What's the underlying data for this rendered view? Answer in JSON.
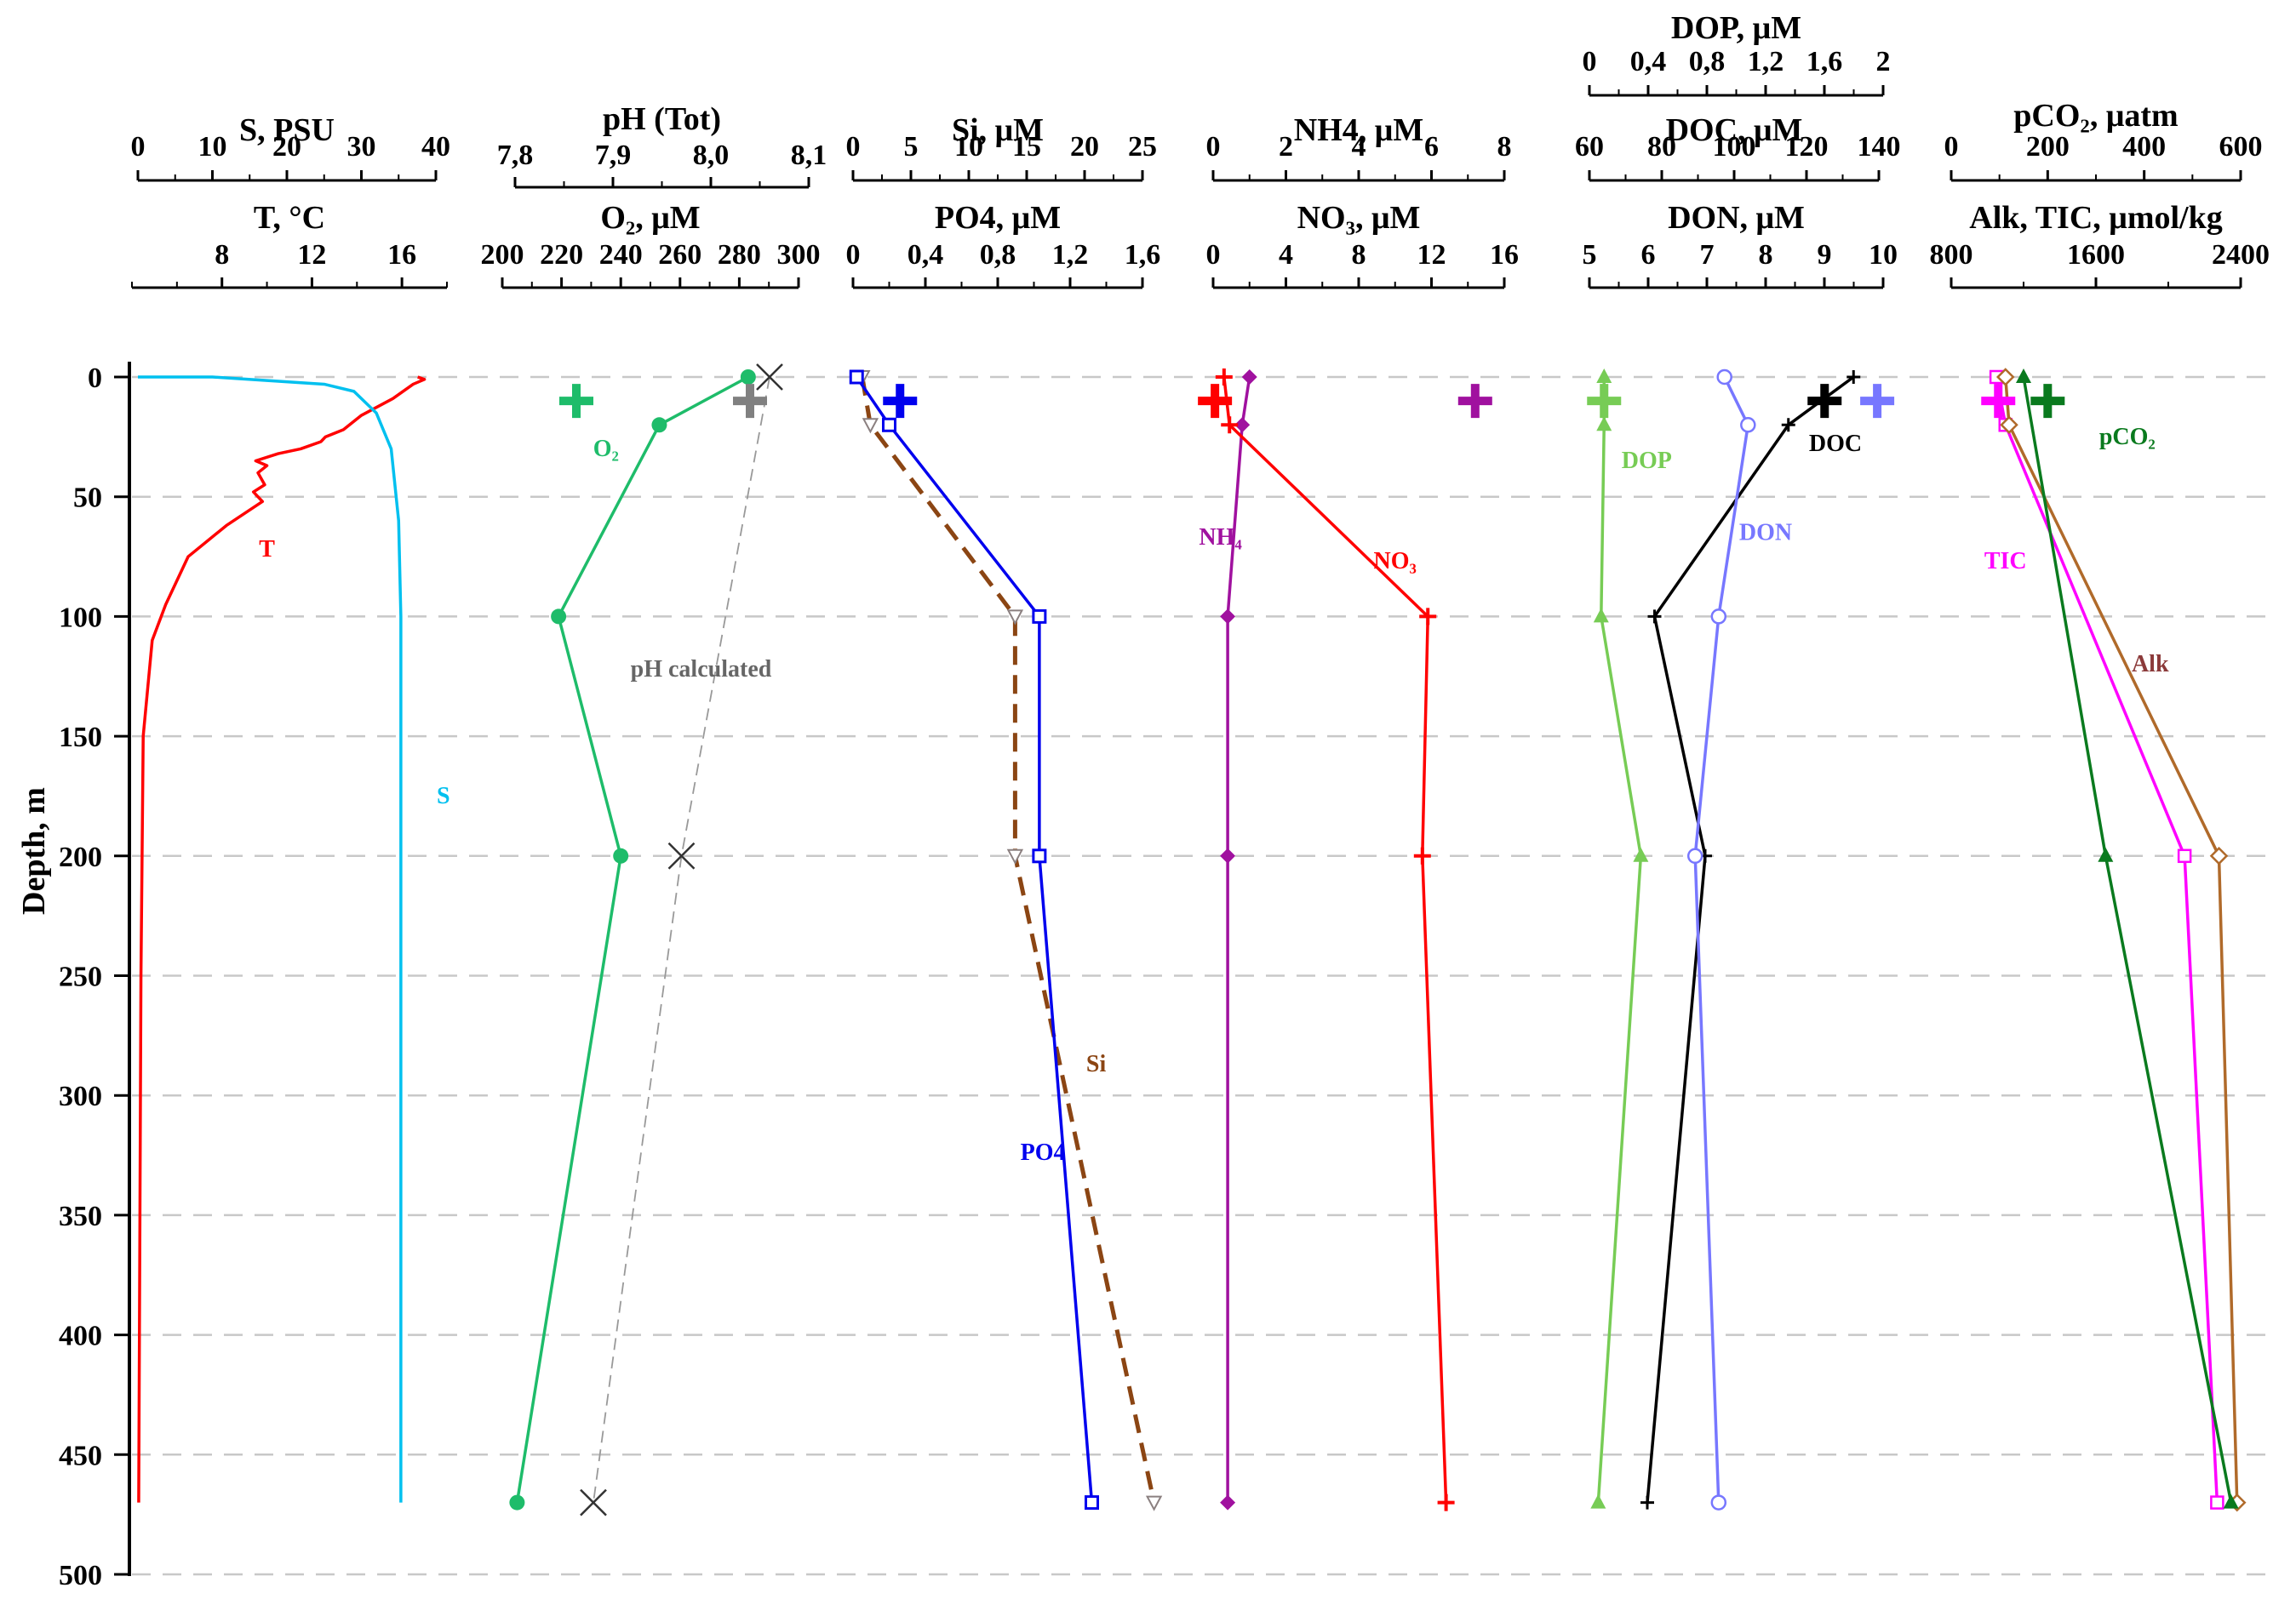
{
  "chart_data": {
    "type": "line",
    "title": "",
    "ylabel": "Depth, m",
    "ylim": [
      0,
      500
    ],
    "yticks": [
      "0",
      "50",
      "100",
      "150",
      "200",
      "250",
      "300",
      "350",
      "400",
      "450",
      "500"
    ],
    "grid": "horizontal dashed",
    "axes": [
      {
        "key": "S",
        "title": "S, PSU",
        "min": 0,
        "max": 40,
        "ticks": [
          "0",
          "10",
          "20",
          "30",
          "40"
        ]
      },
      {
        "key": "T",
        "title": "T, °C",
        "min": 4,
        "max": 18,
        "ticks": [
          "8",
          "12",
          "16"
        ]
      },
      {
        "key": "pH",
        "title": "pH (Tot)",
        "min": 7.8,
        "max": 8.1,
        "ticks": [
          "7,8",
          "7,9",
          "8,0",
          "8,1"
        ]
      },
      {
        "key": "O2",
        "title": "O₂, μM",
        "min": 200,
        "max": 300,
        "ticks": [
          "200",
          "220",
          "240",
          "260",
          "280",
          "300"
        ]
      },
      {
        "key": "Si",
        "title": "Si, μM",
        "min": 0,
        "max": 25,
        "ticks": [
          "0",
          "5",
          "10",
          "15",
          "20",
          "25"
        ]
      },
      {
        "key": "PO4",
        "title": "PO4, μM",
        "min": 0,
        "max": 1.6,
        "ticks": [
          "0",
          "0,4",
          "0,8",
          "1,2",
          "1,6"
        ]
      },
      {
        "key": "NH4",
        "title": "NH4, μM",
        "min": 0,
        "max": 8,
        "ticks": [
          "0",
          "2",
          "4",
          "6",
          "8"
        ]
      },
      {
        "key": "NO3",
        "title": "NO₃, μM",
        "min": 0,
        "max": 16,
        "ticks": [
          "0",
          "4",
          "8",
          "12",
          "16"
        ]
      },
      {
        "key": "DOP",
        "title": "DOP, μM",
        "min": 0,
        "max": 2,
        "ticks": [
          "0",
          "0,4",
          "0,8",
          "1,2",
          "1,6",
          "2"
        ]
      },
      {
        "key": "DOC",
        "title": "DOC, μM",
        "min": 60,
        "max": 140,
        "ticks": [
          "60",
          "80",
          "100",
          "120",
          "140"
        ]
      },
      {
        "key": "DON",
        "title": "DON, μM",
        "min": 5,
        "max": 10,
        "ticks": [
          "5",
          "6",
          "7",
          "8",
          "9",
          "10"
        ]
      },
      {
        "key": "pCO2",
        "title": "pCO₂, μatm",
        "min": 0,
        "max": 600,
        "ticks": [
          "0",
          "200",
          "400",
          "600"
        ]
      },
      {
        "key": "AlkTIC",
        "title": "Alk, TIC, μmol/kg",
        "min": 800,
        "max": 2400,
        "ticks": [
          "800",
          "1600",
          "2400"
        ]
      }
    ],
    "series": [
      {
        "name": "T",
        "axis": "T",
        "color": "#ff0000",
        "marker": "none",
        "points": [
          [
            4.3,
            470
          ],
          [
            4.4,
            250
          ],
          [
            4.5,
            150
          ],
          [
            4.9,
            110
          ],
          [
            5.5,
            95
          ],
          [
            6.5,
            75
          ],
          [
            8.2,
            62
          ],
          [
            9.8,
            52
          ],
          [
            9.4,
            48
          ],
          [
            9.9,
            45
          ],
          [
            9.6,
            40
          ],
          [
            10.0,
            37
          ],
          [
            9.5,
            35
          ],
          [
            10.5,
            32
          ],
          [
            11.5,
            30
          ],
          [
            12.4,
            27
          ],
          [
            12.6,
            25
          ],
          [
            13.4,
            22
          ],
          [
            14.2,
            16
          ],
          [
            15.6,
            9
          ],
          [
            16.2,
            5
          ],
          [
            16.5,
            3
          ],
          [
            17.0,
            1
          ],
          [
            16.7,
            0
          ]
        ]
      },
      {
        "name": "S",
        "axis": "S",
        "color": "#00c0ef",
        "marker": "none",
        "points": [
          [
            0,
            0
          ],
          [
            10,
            0
          ],
          [
            25,
            3
          ],
          [
            29,
            6
          ],
          [
            32,
            15
          ],
          [
            34,
            30
          ],
          [
            35,
            60
          ],
          [
            35.3,
            100
          ],
          [
            35.3,
            470
          ]
        ]
      },
      {
        "name": "O₂",
        "axis": "O2",
        "color": "#1ebc6a",
        "marker": "circle",
        "points": [
          [
            283,
            0
          ],
          [
            253,
            20
          ],
          [
            219,
            100
          ],
          [
            240,
            200
          ],
          [
            205,
            470
          ]
        ]
      },
      {
        "name": "pH calculated",
        "axis": "pH",
        "color": "#999999",
        "marker": "x",
        "dashed": true,
        "points": [
          [
            8.06,
            0
          ],
          [
            7.97,
            200
          ],
          [
            7.88,
            470
          ]
        ]
      },
      {
        "name": "Si",
        "axis": "Si",
        "color": "#8b4513",
        "marker": "triangle-down",
        "dashed": true,
        "points": [
          [
            0.8,
            0
          ],
          [
            1.5,
            20
          ],
          [
            14,
            100
          ],
          [
            14,
            200
          ],
          [
            26,
            470
          ]
        ]
      },
      {
        "name": "PO4",
        "axis": "PO4",
        "color": "#0000ee",
        "marker": "square",
        "points": [
          [
            0.02,
            0
          ],
          [
            0.2,
            20
          ],
          [
            1.03,
            100
          ],
          [
            1.03,
            200
          ],
          [
            1.32,
            470
          ]
        ]
      },
      {
        "name": "NH4",
        "axis": "NH4",
        "color": "#a0119f",
        "marker": "diamond",
        "points": [
          [
            1.0,
            0
          ],
          [
            0.8,
            20
          ],
          [
            0.4,
            100
          ],
          [
            0.4,
            200
          ],
          [
            0.4,
            470
          ]
        ]
      },
      {
        "name": "NO3",
        "axis": "NO3",
        "color": "#ff0000",
        "marker": "plus",
        "points": [
          [
            0.6,
            0
          ],
          [
            0.9,
            20
          ],
          [
            11.8,
            100
          ],
          [
            11.5,
            200
          ],
          [
            12.8,
            470
          ]
        ]
      },
      {
        "name": "DOP",
        "axis": "DOP",
        "color": "#77cc55",
        "marker": "triangle",
        "points": [
          [
            0.1,
            0
          ],
          [
            0.1,
            20
          ],
          [
            0.08,
            100
          ],
          [
            0.35,
            200
          ],
          [
            0.06,
            470
          ]
        ]
      },
      {
        "name": "DOC",
        "axis": "DOC",
        "color": "#000000",
        "marker": "plus-small",
        "points": [
          [
            133,
            0
          ],
          [
            115,
            20
          ],
          [
            78,
            100
          ],
          [
            92,
            200
          ],
          [
            76,
            470
          ]
        ]
      },
      {
        "name": "DON",
        "axis": "DON",
        "color": "#7777ff",
        "marker": "circle-open",
        "points": [
          [
            7.3,
            0
          ],
          [
            7.7,
            20
          ],
          [
            7.2,
            100
          ],
          [
            6.8,
            200
          ],
          [
            7.2,
            470
          ]
        ]
      },
      {
        "name": "TIC",
        "axis": "AlkTIC",
        "color": "#ff00ff",
        "marker": "square-open",
        "points": [
          [
            1050,
            0
          ],
          [
            1100,
            20
          ],
          [
            2090,
            200
          ],
          [
            2270,
            470
          ]
        ]
      },
      {
        "name": "Alk",
        "axis": "AlkTIC",
        "color": "#b06a2a",
        "marker": "diamond-open",
        "points": [
          [
            1100,
            0
          ],
          [
            1120,
            20
          ],
          [
            2280,
            200
          ],
          [
            2380,
            470
          ]
        ]
      },
      {
        "name": "pCO₂",
        "axis": "pCO2",
        "color": "#0a7a1e",
        "marker": "triangle",
        "points": [
          [
            150,
            0
          ],
          [
            320,
            200
          ],
          [
            580,
            470
          ]
        ]
      }
    ],
    "surface_markers": [
      {
        "name": "O₂",
        "axis": "O2",
        "value": 225,
        "depth": 10,
        "color": "#1ebc6a"
      },
      {
        "name": "pH",
        "axis": "pH",
        "value": 8.04,
        "depth": 10,
        "color": "#808080"
      },
      {
        "name": "PO4",
        "axis": "PO4",
        "value": 0.26,
        "depth": 10,
        "color": "#0000ee"
      },
      {
        "name": "NO3",
        "axis": "NO3",
        "value": 0.1,
        "depth": 10,
        "color": "#ff0000"
      },
      {
        "name": "NH4",
        "axis": "NH4",
        "value": 7.2,
        "depth": 10,
        "color": "#a0119f"
      },
      {
        "name": "DOP",
        "axis": "DOP",
        "value": 0.1,
        "depth": 10,
        "color": "#77cc55"
      },
      {
        "name": "DOC",
        "axis": "DOC",
        "value": 125,
        "depth": 10,
        "color": "#000000"
      },
      {
        "name": "DON",
        "axis": "DON",
        "value": 9.9,
        "depth": 10,
        "color": "#7777ff"
      },
      {
        "name": "TIC",
        "axis": "AlkTIC",
        "value": 1060,
        "depth": 10,
        "color": "#ff00ff"
      },
      {
        "name": "pCO₂",
        "axis": "pCO2",
        "value": 200,
        "depth": 10,
        "color": "#0a7a1e"
      }
    ],
    "curve_labels": [
      {
        "text": "T",
        "axis": "T",
        "value": 10.0,
        "depth": 75,
        "color": "#ff0000"
      },
      {
        "text": "S",
        "axis": "S",
        "value": 41.0,
        "depth": 178,
        "color": "#00c0ef"
      },
      {
        "text": "O₂",
        "axis": "O2",
        "value": 235,
        "depth": 33,
        "color": "#1ebc6a"
      },
      {
        "text": "pH calculated",
        "axis": "pH",
        "value": 7.99,
        "depth": 125,
        "color": "#666666"
      },
      {
        "text": "Si",
        "axis": "Si",
        "value": 21.0,
        "depth": 290,
        "color": "#8b4513"
      },
      {
        "text": "PO4",
        "axis": "PO4",
        "value": 1.05,
        "depth": 327,
        "color": "#0000ee"
      },
      {
        "text": "NH₄",
        "axis": "NH4",
        "value": 0.2,
        "depth": 70,
        "color": "#a0119f"
      },
      {
        "text": "NO₃",
        "axis": "NO3",
        "value": 10.0,
        "depth": 80,
        "color": "#ff0000"
      },
      {
        "text": "DOP",
        "axis": "DOP",
        "value": 0.39,
        "depth": 38,
        "color": "#77cc55"
      },
      {
        "text": "DOC",
        "axis": "DOC",
        "value": 128,
        "depth": 31,
        "color": "#000000"
      },
      {
        "text": "DON",
        "axis": "DON",
        "value": 8.0,
        "depth": 68,
        "color": "#7777ff"
      },
      {
        "text": "TIC",
        "axis": "AlkTIC",
        "value": 1100,
        "depth": 80,
        "color": "#ff00ff"
      },
      {
        "text": "Alk",
        "axis": "AlkTIC",
        "value": 1900,
        "depth": 123,
        "color": "#8b3a3a"
      },
      {
        "text": "pCO₂",
        "axis": "pCO2",
        "value": 365,
        "depth": 28,
        "color": "#0a7a1e"
      }
    ]
  }
}
